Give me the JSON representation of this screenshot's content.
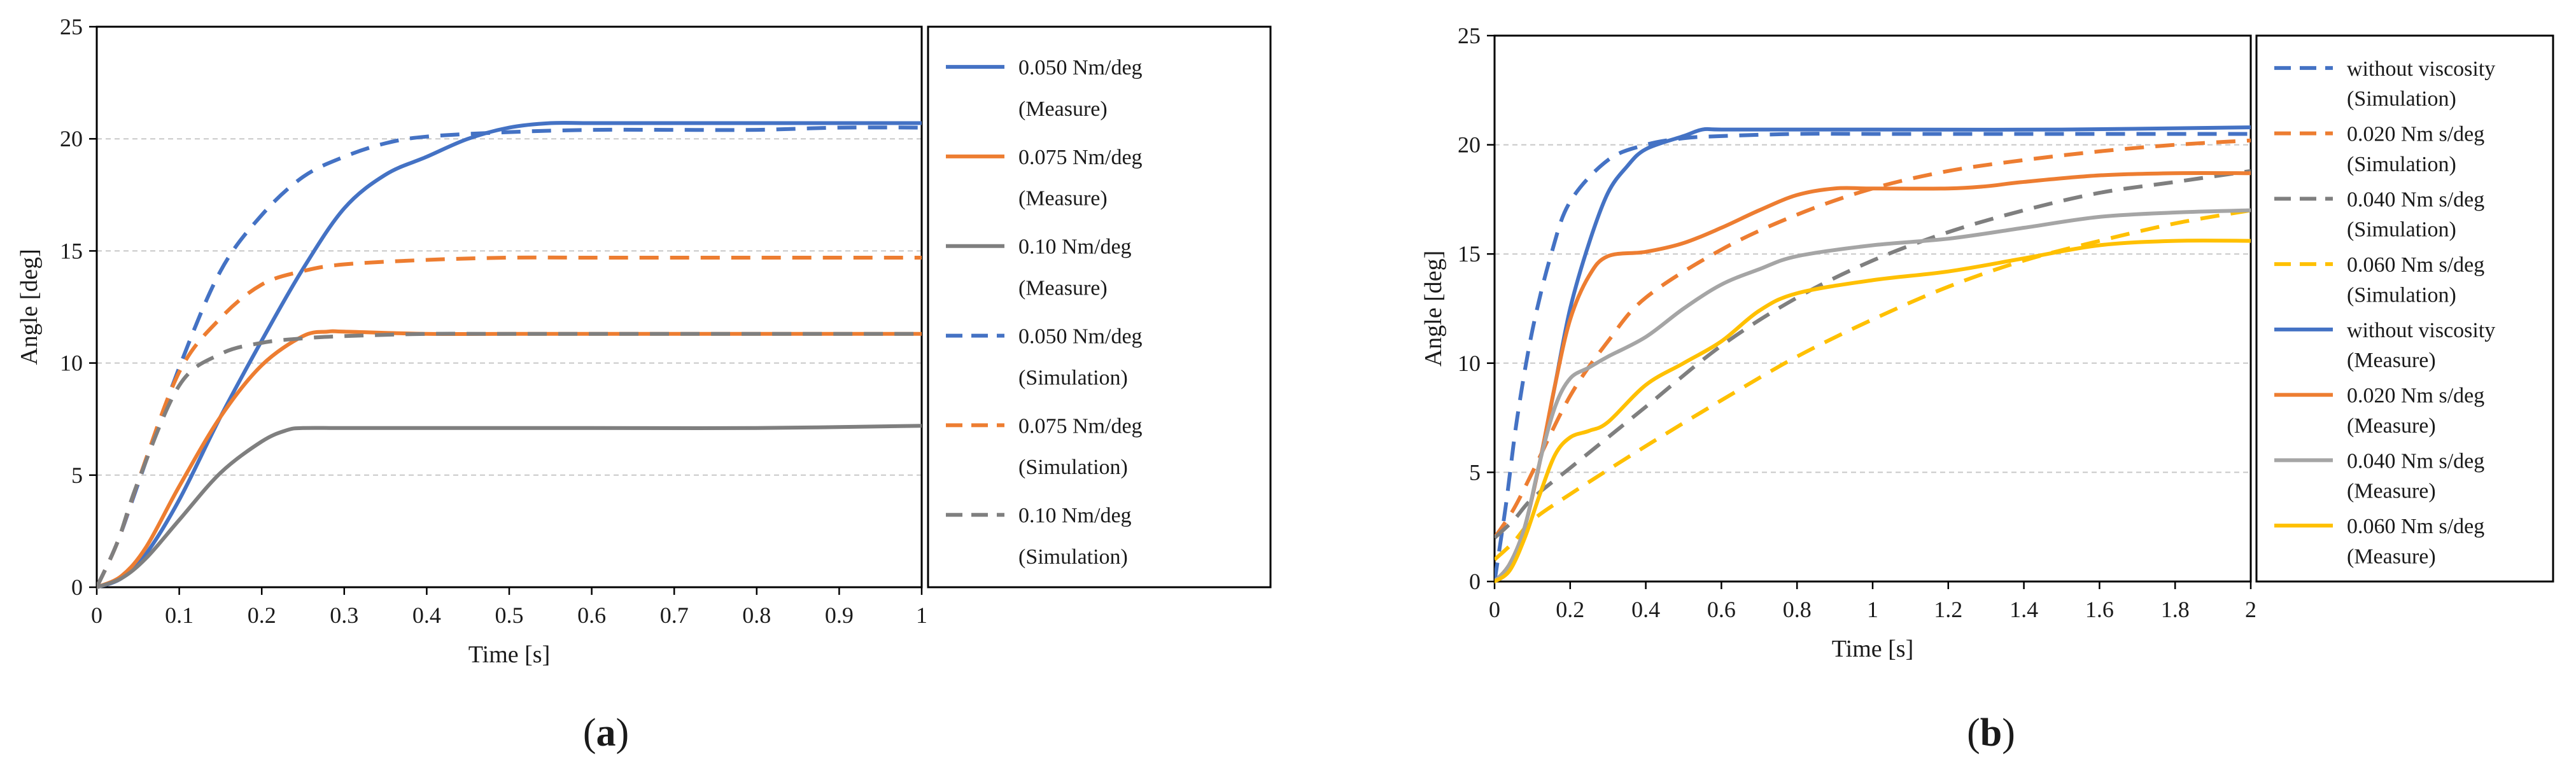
{
  "chart_data": [
    {
      "panel": "a",
      "panel_label": "a",
      "type": "line",
      "title": "",
      "xlabel": "Time [s]",
      "ylabel": "Angle [deg]",
      "xlim": [
        0,
        1
      ],
      "ylim": [
        0,
        25
      ],
      "xticks": [
        0,
        0.1,
        0.2,
        0.3,
        0.4,
        0.5,
        0.6,
        0.7,
        0.8,
        0.9,
        1
      ],
      "xtick_labels": [
        "0",
        "0.1",
        "0.2",
        "0.3",
        "0.4",
        "0.5",
        "0.6",
        "0.7",
        "0.8",
        "0.9",
        "1"
      ],
      "yticks": [
        0,
        5,
        10,
        15,
        20,
        25
      ],
      "ytick_labels": [
        "0",
        "5",
        "10",
        "15",
        "20",
        "25"
      ],
      "grid": "horizontal",
      "legend_position": "right",
      "series": [
        {
          "name": "0.050 Nm/deg (Measure)",
          "line1": "0.050 Nm/deg",
          "line2": "(Measure)",
          "color": "#4472C4",
          "dash": "solid",
          "points": [
            [
              0,
              0
            ],
            [
              0.03,
              0.4
            ],
            [
              0.06,
              1.5
            ],
            [
              0.1,
              3.9
            ],
            [
              0.15,
              7.6
            ],
            [
              0.2,
              11.0
            ],
            [
              0.25,
              14.2
            ],
            [
              0.3,
              16.9
            ],
            [
              0.35,
              18.4
            ],
            [
              0.4,
              19.2
            ],
            [
              0.45,
              20.0
            ],
            [
              0.5,
              20.5
            ],
            [
              0.55,
              20.7
            ],
            [
              0.6,
              20.7
            ],
            [
              0.7,
              20.7
            ],
            [
              0.8,
              20.7
            ],
            [
              0.9,
              20.7
            ],
            [
              1,
              20.7
            ]
          ]
        },
        {
          "name": "0.075 Nm/deg (Measure)",
          "line1": "0.075 Nm/deg",
          "line2": "(Measure)",
          "color": "#ED7D31",
          "dash": "solid",
          "points": [
            [
              0,
              0
            ],
            [
              0.03,
              0.5
            ],
            [
              0.06,
              1.8
            ],
            [
              0.1,
              4.5
            ],
            [
              0.15,
              7.6
            ],
            [
              0.2,
              9.9
            ],
            [
              0.25,
              11.2
            ],
            [
              0.28,
              11.4
            ],
            [
              0.3,
              11.4
            ],
            [
              0.4,
              11.3
            ],
            [
              0.5,
              11.3
            ],
            [
              0.6,
              11.3
            ],
            [
              0.8,
              11.3
            ],
            [
              1,
              11.3
            ]
          ]
        },
        {
          "name": "0.10 Nm/deg (Measure)",
          "line1": "0.10 Nm/deg",
          "line2": "(Measure)",
          "color": "#7F7F7F",
          "dash": "solid",
          "points": [
            [
              0,
              0
            ],
            [
              0.03,
              0.4
            ],
            [
              0.06,
              1.3
            ],
            [
              0.1,
              3.0
            ],
            [
              0.15,
              5.1
            ],
            [
              0.2,
              6.5
            ],
            [
              0.23,
              7.0
            ],
            [
              0.25,
              7.1
            ],
            [
              0.3,
              7.1
            ],
            [
              0.4,
              7.1
            ],
            [
              0.5,
              7.1
            ],
            [
              0.6,
              7.1
            ],
            [
              0.8,
              7.1
            ],
            [
              1,
              7.2
            ]
          ]
        },
        {
          "name": "0.050 Nm/deg (Simulation)",
          "line1": "0.050 Nm/deg",
          "line2": "(Simulation)",
          "color": "#4472C4",
          "dash": "dashed",
          "points": [
            [
              0,
              0
            ],
            [
              0.025,
              2.0
            ],
            [
              0.05,
              4.6
            ],
            [
              0.1,
              9.8
            ],
            [
              0.15,
              14.1
            ],
            [
              0.2,
              16.6
            ],
            [
              0.25,
              18.3
            ],
            [
              0.3,
              19.2
            ],
            [
              0.35,
              19.8
            ],
            [
              0.4,
              20.1
            ],
            [
              0.5,
              20.3
            ],
            [
              0.6,
              20.4
            ],
            [
              0.7,
              20.4
            ],
            [
              0.8,
              20.4
            ],
            [
              0.9,
              20.5
            ],
            [
              1,
              20.5
            ]
          ]
        },
        {
          "name": "0.075 Nm/deg (Simulation)",
          "line1": "0.075 Nm/deg",
          "line2": "(Simulation)",
          "color": "#ED7D31",
          "dash": "dashed",
          "points": [
            [
              0,
              0
            ],
            [
              0.025,
              2.0
            ],
            [
              0.05,
              4.7
            ],
            [
              0.1,
              9.6
            ],
            [
              0.15,
              12.0
            ],
            [
              0.2,
              13.5
            ],
            [
              0.25,
              14.1
            ],
            [
              0.3,
              14.4
            ],
            [
              0.4,
              14.6
            ],
            [
              0.5,
              14.7
            ],
            [
              0.6,
              14.7
            ],
            [
              0.8,
              14.7
            ],
            [
              1,
              14.7
            ]
          ]
        },
        {
          "name": "0.10 Nm/deg (Simulation)",
          "line1": "0.10 Nm/deg",
          "line2": "(Simulation)",
          "color": "#7F7F7F",
          "dash": "dashed",
          "points": [
            [
              0,
              0
            ],
            [
              0.025,
              2.0
            ],
            [
              0.05,
              4.7
            ],
            [
              0.1,
              9.0
            ],
            [
              0.15,
              10.4
            ],
            [
              0.2,
              10.9
            ],
            [
              0.25,
              11.1
            ],
            [
              0.3,
              11.2
            ],
            [
              0.4,
              11.3
            ],
            [
              0.5,
              11.3
            ],
            [
              0.7,
              11.3
            ],
            [
              1,
              11.3
            ]
          ]
        }
      ]
    },
    {
      "panel": "b",
      "panel_label": "b",
      "type": "line",
      "title": "",
      "xlabel": "Time [s]",
      "ylabel": "Angle [deg]",
      "xlim": [
        0,
        2
      ],
      "ylim": [
        0,
        25
      ],
      "xticks": [
        0,
        0.2,
        0.4,
        0.6,
        0.8,
        1,
        1.2,
        1.4,
        1.6,
        1.8,
        2
      ],
      "xtick_labels": [
        "0",
        "0.2",
        "0.4",
        "0.6",
        "0.8",
        "1",
        "1.2",
        "1.4",
        "1.6",
        "1.8",
        "2"
      ],
      "yticks": [
        0,
        5,
        10,
        15,
        20,
        25
      ],
      "ytick_labels": [
        "0",
        "5",
        "10",
        "15",
        "20",
        "25"
      ],
      "grid": "horizontal",
      "legend_position": "right",
      "series": [
        {
          "name": "without viscosity (Simulation)",
          "line1": "without viscosity",
          "line2": "(Simulation)",
          "color": "#4472C4",
          "dash": "dashed",
          "points": [
            [
              0,
              0
            ],
            [
              0.03,
              3.5
            ],
            [
              0.06,
              7.5
            ],
            [
              0.1,
              11.5
            ],
            [
              0.15,
              15.0
            ],
            [
              0.2,
              17.4
            ],
            [
              0.3,
              19.3
            ],
            [
              0.4,
              20.0
            ],
            [
              0.5,
              20.3
            ],
            [
              0.6,
              20.4
            ],
            [
              0.8,
              20.5
            ],
            [
              1,
              20.5
            ],
            [
              1.4,
              20.5
            ],
            [
              2,
              20.5
            ]
          ]
        },
        {
          "name": "0.020 Nm s/deg (Simulation)",
          "line1": "0.020 Nm s/deg",
          "line2": "(Simulation)",
          "color": "#ED7D31",
          "dash": "dashed",
          "points": [
            [
              0,
              2.0
            ],
            [
              0.05,
              3.3
            ],
            [
              0.1,
              5.0
            ],
            [
              0.2,
              8.5
            ],
            [
              0.3,
              11.0
            ],
            [
              0.4,
              13.0
            ],
            [
              0.6,
              15.2
            ],
            [
              0.8,
              16.8
            ],
            [
              1,
              18.0
            ],
            [
              1.2,
              18.8
            ],
            [
              1.4,
              19.3
            ],
            [
              1.6,
              19.7
            ],
            [
              1.8,
              20.0
            ],
            [
              2,
              20.2
            ]
          ]
        },
        {
          "name": "0.040 Nm s/deg (Simulation)",
          "line1": "0.040 Nm s/deg",
          "line2": "(Simulation)",
          "color": "#7F7F7F",
          "dash": "dashed",
          "points": [
            [
              0,
              2.0
            ],
            [
              0.05,
              2.8
            ],
            [
              0.1,
              3.8
            ],
            [
              0.2,
              5.2
            ],
            [
              0.3,
              6.6
            ],
            [
              0.4,
              8.0
            ],
            [
              0.6,
              10.8
            ],
            [
              0.8,
              13.0
            ],
            [
              1,
              14.7
            ],
            [
              1.2,
              16.0
            ],
            [
              1.4,
              17.0
            ],
            [
              1.6,
              17.8
            ],
            [
              1.8,
              18.3
            ],
            [
              2,
              18.8
            ]
          ]
        },
        {
          "name": "0.060 Nm s/deg (Simulation)",
          "line1": "0.060 Nm s/deg",
          "line2": "(Simulation)",
          "color": "#FFC000",
          "dash": "dashed",
          "points": [
            [
              0,
              1.0
            ],
            [
              0.05,
              1.8
            ],
            [
              0.1,
              2.8
            ],
            [
              0.2,
              4.0
            ],
            [
              0.4,
              6.2
            ],
            [
              0.6,
              8.3
            ],
            [
              0.8,
              10.3
            ],
            [
              1,
              12.0
            ],
            [
              1.2,
              13.5
            ],
            [
              1.4,
              14.7
            ],
            [
              1.6,
              15.6
            ],
            [
              1.8,
              16.4
            ],
            [
              2,
              17.0
            ]
          ]
        },
        {
          "name": "without viscosity (Measure)",
          "line1": "without viscosity",
          "line2": "(Measure)",
          "color": "#4472C4",
          "dash": "solid",
          "points": [
            [
              0,
              0
            ],
            [
              0.04,
              0.8
            ],
            [
              0.08,
              2.5
            ],
            [
              0.12,
              5.5
            ],
            [
              0.16,
              9.0
            ],
            [
              0.2,
              12.5
            ],
            [
              0.25,
              15.5
            ],
            [
              0.3,
              17.8
            ],
            [
              0.35,
              19.0
            ],
            [
              0.4,
              19.8
            ],
            [
              0.5,
              20.4
            ],
            [
              0.55,
              20.7
            ],
            [
              0.6,
              20.7
            ],
            [
              0.8,
              20.7
            ],
            [
              1,
              20.7
            ],
            [
              1.5,
              20.7
            ],
            [
              2,
              20.8
            ]
          ]
        },
        {
          "name": "0.020 Nm s/deg (Measure)",
          "line1": "0.020 Nm s/deg",
          "line2": "(Measure)",
          "color": "#ED7D31",
          "dash": "solid",
          "points": [
            [
              0,
              0
            ],
            [
              0.04,
              0.8
            ],
            [
              0.08,
              2.5
            ],
            [
              0.12,
              5.5
            ],
            [
              0.16,
              9.0
            ],
            [
              0.2,
              12.0
            ],
            [
              0.25,
              14.0
            ],
            [
              0.3,
              14.9
            ],
            [
              0.4,
              15.1
            ],
            [
              0.5,
              15.5
            ],
            [
              0.6,
              16.2
            ],
            [
              0.7,
              17.0
            ],
            [
              0.8,
              17.7
            ],
            [
              0.9,
              18.0
            ],
            [
              1,
              18.0
            ],
            [
              1.2,
              18.0
            ],
            [
              1.3,
              18.1
            ],
            [
              1.4,
              18.3
            ],
            [
              1.6,
              18.6
            ],
            [
              1.8,
              18.7
            ],
            [
              2,
              18.7
            ]
          ]
        },
        {
          "name": "0.040 Nm s/deg (Measure)",
          "line1": "0.040 Nm s/deg",
          "line2": "(Measure)",
          "color": "#A5A5A5",
          "dash": "solid",
          "points": [
            [
              0,
              0
            ],
            [
              0.04,
              0.8
            ],
            [
              0.08,
              2.5
            ],
            [
              0.12,
              5.5
            ],
            [
              0.16,
              8.0
            ],
            [
              0.2,
              9.3
            ],
            [
              0.25,
              9.8
            ],
            [
              0.3,
              10.3
            ],
            [
              0.4,
              11.2
            ],
            [
              0.5,
              12.5
            ],
            [
              0.6,
              13.6
            ],
            [
              0.7,
              14.3
            ],
            [
              0.8,
              14.9
            ],
            [
              1,
              15.4
            ],
            [
              1.2,
              15.7
            ],
            [
              1.4,
              16.2
            ],
            [
              1.6,
              16.7
            ],
            [
              1.8,
              16.9
            ],
            [
              2,
              17.0
            ]
          ]
        },
        {
          "name": "0.060 Nm s/deg (Measure)",
          "line1": "0.060 Nm s/deg",
          "line2": "(Measure)",
          "color": "#FFC000",
          "dash": "solid",
          "points": [
            [
              0,
              0
            ],
            [
              0.04,
              0.5
            ],
            [
              0.08,
              2.0
            ],
            [
              0.12,
              4.0
            ],
            [
              0.16,
              5.8
            ],
            [
              0.2,
              6.6
            ],
            [
              0.25,
              6.9
            ],
            [
              0.3,
              7.3
            ],
            [
              0.4,
              9.0
            ],
            [
              0.5,
              10.0
            ],
            [
              0.6,
              11.0
            ],
            [
              0.7,
              12.4
            ],
            [
              0.8,
              13.2
            ],
            [
              1,
              13.8
            ],
            [
              1.2,
              14.2
            ],
            [
              1.4,
              14.8
            ],
            [
              1.6,
              15.4
            ],
            [
              1.8,
              15.6
            ],
            [
              2,
              15.6
            ]
          ]
        }
      ]
    }
  ]
}
